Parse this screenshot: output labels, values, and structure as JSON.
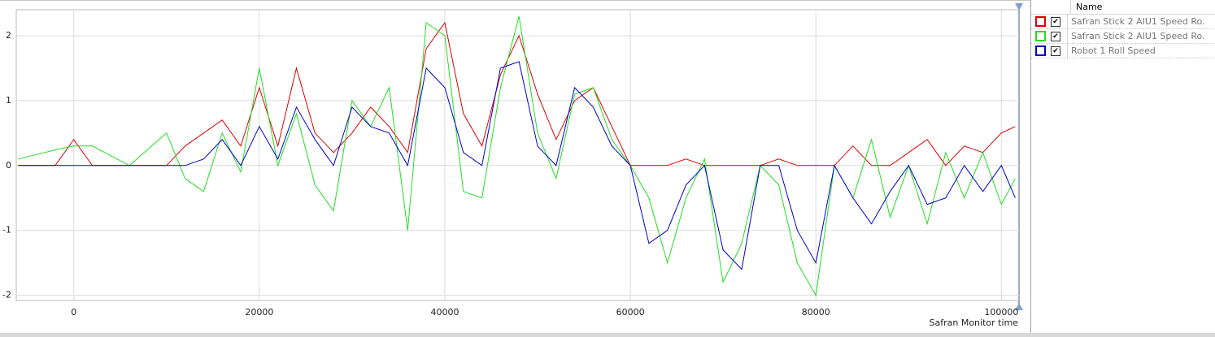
{
  "chart_data": {
    "type": "line",
    "x_label": "Safran Monitor time",
    "x": [
      -6000,
      -4000,
      -2000,
      0,
      2000,
      4000,
      6000,
      8000,
      10000,
      12000,
      14000,
      16000,
      18000,
      20000,
      22000,
      24000,
      26000,
      28000,
      30000,
      32000,
      34000,
      36000,
      38000,
      40000,
      42000,
      44000,
      46000,
      48000,
      50000,
      52000,
      54000,
      56000,
      58000,
      60000,
      62000,
      64000,
      66000,
      68000,
      70000,
      72000,
      74000,
      76000,
      78000,
      80000,
      82000,
      84000,
      86000,
      88000,
      90000,
      92000,
      94000,
      96000,
      98000,
      100000,
      101500
    ],
    "series": [
      {
        "name": "Safran Stick 2 AIU1 Speed Ro...",
        "color": "#e00000",
        "values": [
          0,
          0,
          0,
          0.4,
          0,
          0,
          0,
          0,
          0,
          0.3,
          0.5,
          0.7,
          0.3,
          1.2,
          0.3,
          1.5,
          0.5,
          0.2,
          0.5,
          0.9,
          0.6,
          0.2,
          1.8,
          2.2,
          0.8,
          0.3,
          1.4,
          2.0,
          1.1,
          0.4,
          1.0,
          1.2,
          0.6,
          0,
          0,
          0,
          0.1,
          0,
          0,
          0,
          0,
          0.1,
          0,
          0,
          0,
          0.3,
          0,
          0,
          0.2,
          0.4,
          0,
          0.3,
          0.2,
          0.5,
          0.6
        ]
      },
      {
        "name": "Safran Stick 2 AIU1 Speed Ro...",
        "color": "#22dd22",
        "values": [
          0.1,
          0.17,
          0.24,
          0.3,
          0.3,
          0.15,
          0,
          0.25,
          0.5,
          -0.2,
          -0.4,
          0.5,
          -0.1,
          1.5,
          0,
          0.8,
          -0.3,
          -0.7,
          1.0,
          0.6,
          1.2,
          -1.0,
          2.2,
          2.0,
          -0.4,
          -0.5,
          1.2,
          2.3,
          0.5,
          -0.2,
          1.1,
          1.2,
          0.4,
          0,
          -0.5,
          -1.5,
          -0.5,
          0.1,
          -1.8,
          -1.2,
          0,
          -0.3,
          -1.5,
          -2.0,
          0,
          -0.5,
          0.4,
          -0.8,
          0,
          -0.9,
          0.2,
          -0.5,
          0.2,
          -0.6,
          -0.2
        ]
      },
      {
        "name": "Robot 1 Roll Speed",
        "color": "#0000cc",
        "values": [
          0,
          0,
          0,
          0,
          0,
          0,
          0,
          0,
          0,
          0,
          0.1,
          0.4,
          0,
          0.6,
          0.1,
          0.9,
          0.4,
          0,
          0.9,
          0.6,
          0.5,
          0,
          1.5,
          1.2,
          0.2,
          0,
          1.5,
          1.6,
          0.3,
          0,
          1.2,
          0.9,
          0.3,
          0,
          -1.2,
          -1.0,
          -0.3,
          0,
          -1.3,
          -1.6,
          0,
          0,
          -1.0,
          -1.5,
          0,
          -0.5,
          -0.9,
          -0.4,
          0,
          -0.6,
          -0.5,
          0,
          -0.4,
          0,
          -0.5
        ]
      }
    ],
    "xlim": [
      -6200,
      101900
    ],
    "xticks": [
      0,
      20000,
      40000,
      60000,
      80000,
      100000
    ],
    "ylim": [
      -2.08,
      2.4
    ],
    "yticks": [
      -2,
      -1,
      0,
      1,
      2
    ],
    "grid": true
  },
  "legend_header": "Name"
}
